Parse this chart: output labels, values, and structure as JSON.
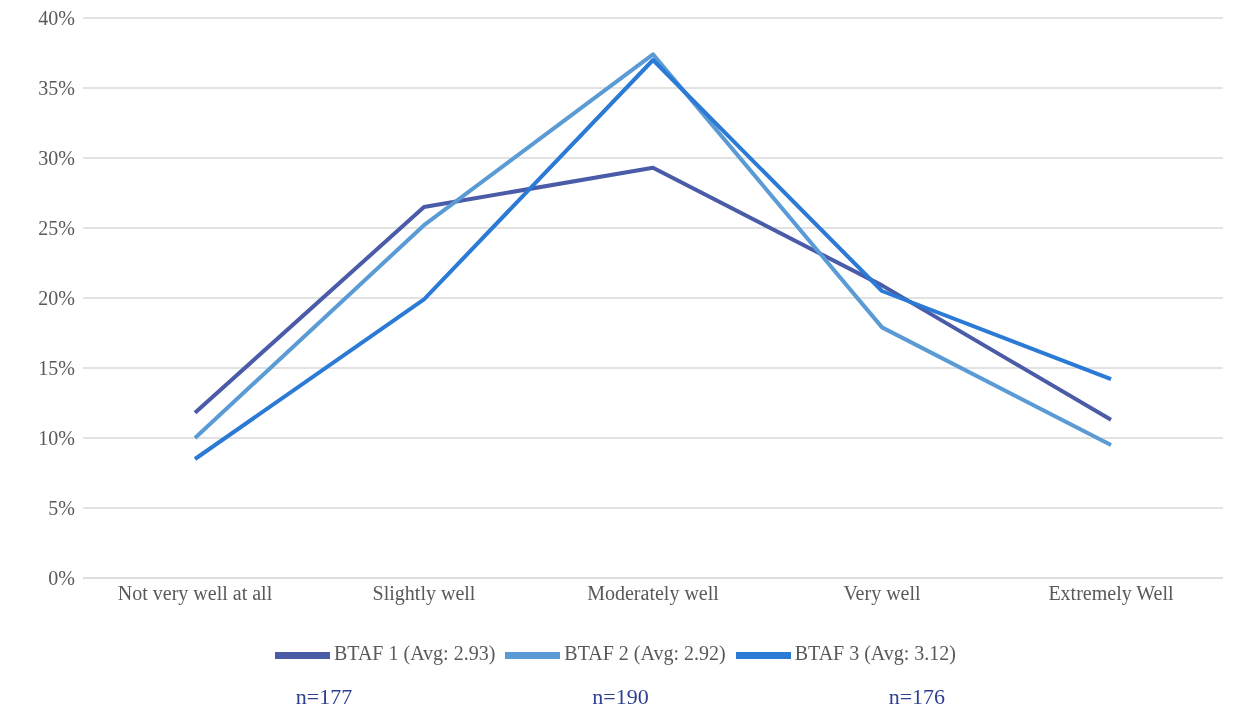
{
  "chart_data": {
    "type": "line",
    "categories": [
      "Not very well at all",
      "Slightly well",
      "Moderately well",
      "Very well",
      "Extremely Well"
    ],
    "series": [
      {
        "name": "BTAF 1 (Avg: 2.93)",
        "color": "#4a5ba8",
        "values": [
          11.8,
          26.5,
          29.3,
          20.9,
          11.3
        ]
      },
      {
        "name": "BTAF 2 (Avg: 2.92)",
        "color": "#5b9bd5",
        "values": [
          10.0,
          25.2,
          37.4,
          17.9,
          9.5
        ]
      },
      {
        "name": "BTAF 3 (Avg: 3.12)",
        "color": "#2a7ad6",
        "values": [
          8.5,
          19.9,
          37.0,
          20.5,
          14.2
        ]
      }
    ],
    "ylim": [
      0,
      40
    ],
    "yticks": [
      {
        "value": 0,
        "label": "0%"
      },
      {
        "value": 5,
        "label": "5%"
      },
      {
        "value": 10,
        "label": "10%"
      },
      {
        "value": 15,
        "label": "15%"
      },
      {
        "value": 20,
        "label": "20%"
      },
      {
        "value": 25,
        "label": "25%"
      },
      {
        "value": 30,
        "label": "30%"
      },
      {
        "value": 35,
        "label": "35%"
      },
      {
        "value": 40,
        "label": "40%"
      }
    ],
    "grid": "y",
    "legend": "bottom",
    "marker": "none",
    "line_style": "solid",
    "annotations": [
      "n=177",
      "n=190",
      "n=176"
    ]
  }
}
